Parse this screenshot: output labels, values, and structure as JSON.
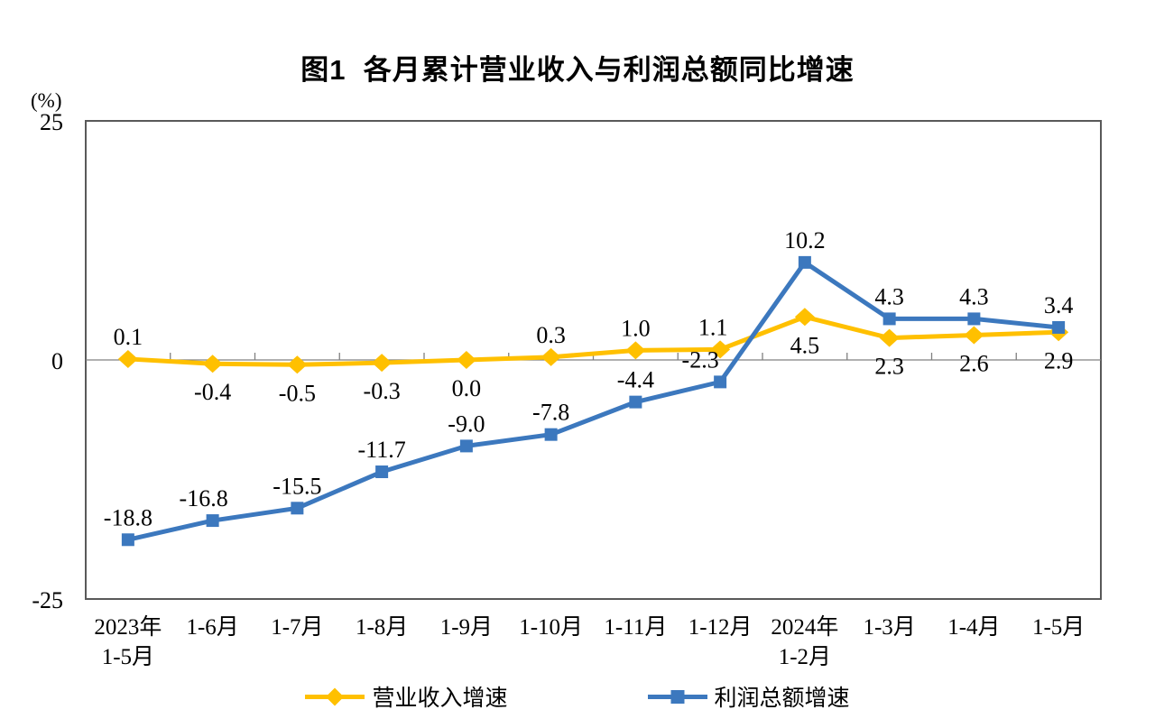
{
  "chart_data": {
    "type": "line",
    "title": "图1  各月累计营业收入与利润总额同比增速",
    "ylabel": "(%)",
    "xlabel": "",
    "ylim": [
      -25,
      25
    ],
    "yticks": [
      25,
      0,
      -25
    ],
    "grid": false,
    "legend_position": "bottom",
    "axis_color": "#595959",
    "zero_line_color": "#808080",
    "text_color": "#000000",
    "categories": [
      [
        "2023年",
        "1-5月"
      ],
      [
        "1-6月"
      ],
      [
        "1-7月"
      ],
      [
        "1-8月"
      ],
      [
        "1-9月"
      ],
      [
        "1-10月"
      ],
      [
        "1-11月"
      ],
      [
        "1-12月"
      ],
      [
        "2024年",
        "1-2月"
      ],
      [
        "1-3月"
      ],
      [
        "1-4月"
      ],
      [
        "1-5月"
      ]
    ],
    "series": [
      {
        "name": "营业收入增速",
        "color": "#FFC000",
        "marker": "diamond",
        "values": [
          0.1,
          -0.4,
          -0.5,
          -0.3,
          0.0,
          0.3,
          1.0,
          1.1,
          4.5,
          2.3,
          2.6,
          2.9
        ],
        "labels": [
          "0.1",
          "-0.4",
          "-0.5",
          "-0.3",
          "0.0",
          "0.3",
          "1.0",
          "1.1",
          "4.5",
          "2.3",
          "2.6",
          "2.9"
        ],
        "label_positions": [
          "above",
          "below",
          "below",
          "below",
          "below",
          "above",
          "above",
          "above",
          "below",
          "below",
          "below",
          "below"
        ],
        "label_dx": [
          0,
          0,
          0,
          0,
          0,
          0,
          0,
          -8,
          0,
          0,
          0,
          0
        ]
      },
      {
        "name": "利润总额增速",
        "color": "#3C78BE",
        "marker": "square",
        "values": [
          -18.8,
          -16.8,
          -15.5,
          -11.7,
          -9.0,
          -7.8,
          -4.4,
          -2.3,
          10.2,
          4.3,
          4.3,
          3.4
        ],
        "labels": [
          "-18.8",
          "-16.8",
          "-15.5",
          "-11.7",
          "-9.0",
          "-7.8",
          "-4.4",
          "-2.3",
          "10.2",
          "4.3",
          "4.3",
          "3.4"
        ],
        "label_positions": [
          "above",
          "above",
          "above",
          "above",
          "above",
          "above",
          "above",
          "above",
          "above",
          "above",
          "above",
          "above"
        ],
        "label_dx": [
          0,
          -10,
          0,
          0,
          0,
          0,
          0,
          -22,
          0,
          0,
          0,
          0
        ]
      }
    ]
  }
}
